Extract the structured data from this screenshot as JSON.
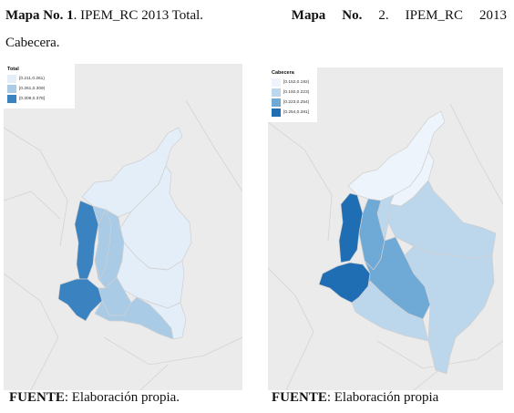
{
  "caption": {
    "map1_label": "Mapa No. 1",
    "map1_title": ". IPEM_RC 2013 Total.",
    "map2_word1": "Mapa",
    "map2_word2": "No.",
    "map2_number": "2.",
    "map2_code": "IPEM_RC",
    "map2_year": "2013",
    "map2_tail": "Cabecera."
  },
  "maps": [
    {
      "legend_title": "Total",
      "legend": [
        {
          "label": "[0.211,0.261)",
          "color": "#e4eef8"
        },
        {
          "label": "[0.261,0.309)",
          "color": "#a9cbe6"
        },
        {
          "label": "[0.309,0.378]",
          "color": "#3b83c0"
        }
      ],
      "regions": [
        {
          "fill": "#e4eef8"
        },
        {
          "fill": "#e4eef8"
        },
        {
          "fill": "#3b83c0"
        },
        {
          "fill": "#a9cbe6"
        },
        {
          "fill": "#e4eef8"
        },
        {
          "fill": "#3b83c0"
        },
        {
          "fill": "#a9cbe6"
        },
        {
          "fill": "#a9cbe6"
        },
        {
          "fill": "#e4eef8"
        },
        {
          "fill": "#a9cbe6"
        }
      ]
    },
    {
      "legend_title": "Cabecera",
      "legend": [
        {
          "label": "[0.152,0.192)",
          "color": "#eef4fb"
        },
        {
          "label": "[0.192,0.223)",
          "color": "#bcd6ec"
        },
        {
          "label": "[0.223,0.254)",
          "color": "#6fa9d6"
        },
        {
          "label": "[0.254,0.281]",
          "color": "#1f6eb4"
        }
      ],
      "regions": [
        {
          "fill": "#eef4fb"
        },
        {
          "fill": "#eef4fb"
        },
        {
          "fill": "#1f6eb4"
        },
        {
          "fill": "#6fa9d6"
        },
        {
          "fill": "#bcd6ec"
        },
        {
          "fill": "#1f6eb4"
        },
        {
          "fill": "#6fa9d6"
        },
        {
          "fill": "#bcd6ec"
        },
        {
          "fill": "#bcd6ec"
        },
        {
          "fill": "#bcd6ec"
        }
      ]
    }
  ],
  "source": {
    "label": "FUENTE",
    "text1": ": Elaboración propia.",
    "text2": ": Elaboración propia"
  }
}
